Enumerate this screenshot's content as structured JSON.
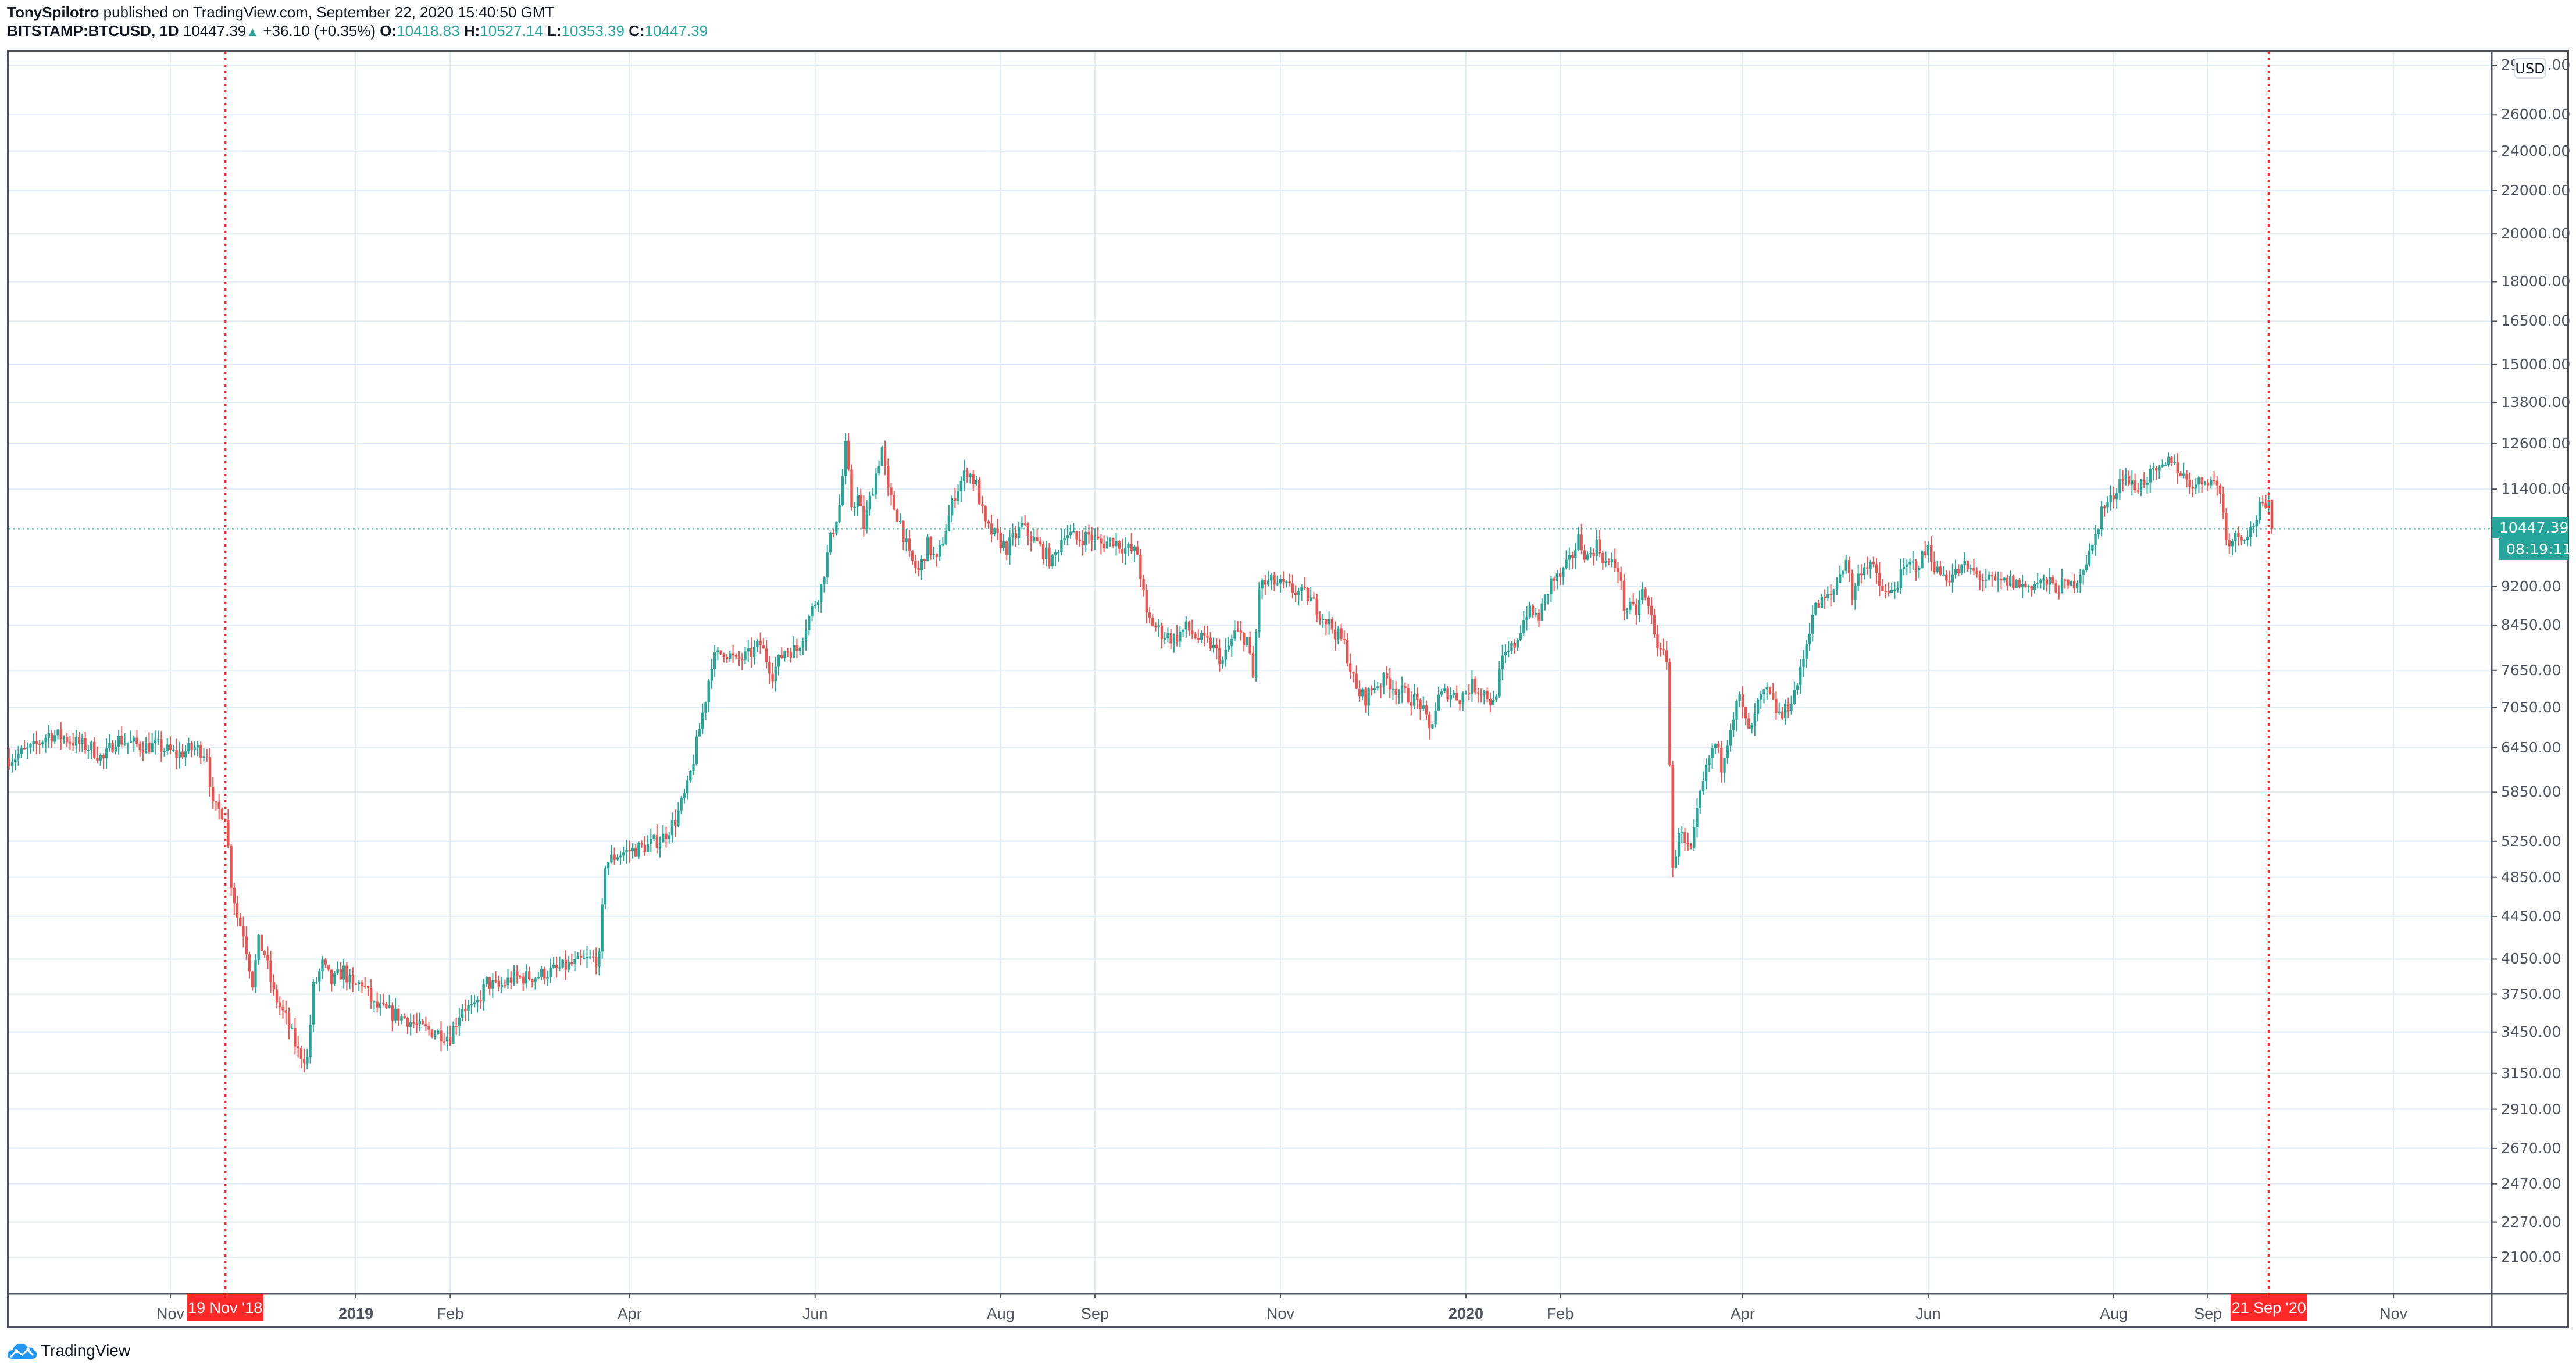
{
  "header": {
    "author": "TonySpilotro",
    "published_text": " published on TradingView.com, September 22, 2020 15:40:50 GMT",
    "symbol": "BITSTAMP:BTCUSD, 1D",
    "last": "10447.39",
    "change": "+36.10 (+0.35%)",
    "o_label": "O:",
    "o": "10418.83",
    "h_label": "H:",
    "h": "10527.14",
    "l_label": "L:",
    "l": "10353.39",
    "c_label": "C:",
    "c": "10447.39"
  },
  "price_axis": {
    "currency_badge": "USD",
    "last_price_badge": "10447.39",
    "countdown_badge": "08:19:11"
  },
  "markers": {
    "start_label": "19 Nov '18",
    "end_label": "21 Sep '20"
  },
  "footer": {
    "logo_text": "TradingView"
  },
  "colors": {
    "up": "#26a69a",
    "down": "#ef5350",
    "grid": "#e1ecf2",
    "marker": "#ff2828",
    "axis": "#50535e",
    "logo": "#2196f3"
  },
  "chart_data": {
    "type": "candlestick",
    "title": "BITSTAMP:BTCUSD, 1D",
    "xlabel": "",
    "ylabel": "USD",
    "y_scale": "log",
    "ylim": [
      2000,
      29000
    ],
    "grid": true,
    "y_ticks": [
      29000,
      26000,
      24000,
      22000,
      20000,
      18000,
      16500,
      15000,
      13800,
      12600,
      11400,
      10447.39,
      9200,
      8450,
      7650,
      7050,
      6450,
      5850,
      5250,
      4850,
      4450,
      4050,
      3750,
      3450,
      3150,
      2910,
      2670,
      2470,
      2270,
      2100
    ],
    "y_tick_labels": [
      "29000.00",
      "26000.00",
      "24000.00",
      "22000.00",
      "20000.00",
      "18000.00",
      "16500.00",
      "15000.00",
      "13800.00",
      "12600.00",
      "11400.00",
      "10447.39",
      "9200.00",
      "8450.00",
      "7650.00",
      "7050.00",
      "6450.00",
      "5850.00",
      "5250.00",
      "4850.00",
      "4450.00",
      "4050.00",
      "3750.00",
      "3450.00",
      "3150.00",
      "2910.00",
      "2670.00",
      "2470.00",
      "2270.00",
      "2100.00"
    ],
    "x_ticks": [
      {
        "label": "Nov",
        "day": 0
      },
      {
        "label": "19 Nov '18",
        "day": 18,
        "highlight": true
      },
      {
        "label": "2019",
        "day": 61,
        "year": true
      },
      {
        "label": "Feb",
        "day": 92
      },
      {
        "label": "Apr",
        "day": 151
      },
      {
        "label": "Jun",
        "day": 212
      },
      {
        "label": "Aug",
        "day": 273
      },
      {
        "label": "Sep",
        "day": 304
      },
      {
        "label": "Nov",
        "day": 365
      },
      {
        "label": "2020",
        "day": 426,
        "year": true
      },
      {
        "label": "Feb",
        "day": 457
      },
      {
        "label": "Apr",
        "day": 517
      },
      {
        "label": "Jun",
        "day": 578
      },
      {
        "label": "Aug",
        "day": 639
      },
      {
        "label": "Sep",
        "day": 670
      },
      {
        "label": "21 Sep '20",
        "day": 690,
        "highlight": true
      },
      {
        "label": "Nov",
        "day": 731
      }
    ],
    "vertical_markers": [
      {
        "label": "19 Nov '18",
        "day": 18
      },
      {
        "label": "21 Sep '20",
        "day": 690
      }
    ],
    "last_price_line": 10447.39,
    "day0": "2018-11-01",
    "close_path": [
      [
        -53,
        6300
      ],
      [
        -45,
        6450
      ],
      [
        -40,
        6650
      ],
      [
        -35,
        6600
      ],
      [
        -30,
        6500
      ],
      [
        -26,
        6450
      ],
      [
        -22,
        6280
      ],
      [
        -18,
        6580
      ],
      [
        -10,
        6480
      ],
      [
        -4,
        6470
      ],
      [
        2,
        6350
      ],
      [
        8,
        6450
      ],
      [
        12,
        6380
      ],
      [
        14,
        5650
      ],
      [
        17,
        5600
      ],
      [
        18,
        5580
      ],
      [
        20,
        4800
      ],
      [
        22,
        4450
      ],
      [
        24,
        4300
      ],
      [
        27,
        3850
      ],
      [
        29,
        4200
      ],
      [
        31,
        4100
      ],
      [
        34,
        3750
      ],
      [
        38,
        3550
      ],
      [
        42,
        3300
      ],
      [
        45,
        3250
      ],
      [
        47,
        3800
      ],
      [
        50,
        4000
      ],
      [
        53,
        3850
      ],
      [
        57,
        3950
      ],
      [
        60,
        3800
      ],
      [
        63,
        3850
      ],
      [
        67,
        3650
      ],
      [
        72,
        3600
      ],
      [
        77,
        3560
      ],
      [
        82,
        3480
      ],
      [
        87,
        3450
      ],
      [
        92,
        3420
      ],
      [
        96,
        3650
      ],
      [
        100,
        3620
      ],
      [
        104,
        3850
      ],
      [
        108,
        3800
      ],
      [
        112,
        3880
      ],
      [
        120,
        3900
      ],
      [
        126,
        3950
      ],
      [
        132,
        4000
      ],
      [
        138,
        4050
      ],
      [
        141,
        4050
      ],
      [
        143,
        5000
      ],
      [
        147,
        5100
      ],
      [
        152,
        5150
      ],
      [
        157,
        5200
      ],
      [
        162,
        5300
      ],
      [
        166,
        5500
      ],
      [
        170,
        5900
      ],
      [
        173,
        6500
      ],
      [
        176,
        7200
      ],
      [
        178,
        7800
      ],
      [
        182,
        8000
      ],
      [
        186,
        7800
      ],
      [
        190,
        7900
      ],
      [
        194,
        8100
      ],
      [
        198,
        7600
      ],
      [
        202,
        8000
      ],
      [
        206,
        8000
      ],
      [
        210,
        8600
      ],
      [
        214,
        9200
      ],
      [
        217,
        10200
      ],
      [
        220,
        11000
      ],
      [
        222,
        12500
      ],
      [
        224,
        11000
      ],
      [
        226,
        11200
      ],
      [
        228,
        10500
      ],
      [
        232,
        11800
      ],
      [
        234,
        12500
      ],
      [
        236,
        11300
      ],
      [
        240,
        10600
      ],
      [
        243,
        9800
      ],
      [
        246,
        9500
      ],
      [
        249,
        10100
      ],
      [
        252,
        9700
      ],
      [
        254,
        10200
      ],
      [
        258,
        11300
      ],
      [
        262,
        11900
      ],
      [
        265,
        11500
      ],
      [
        268,
        10500
      ],
      [
        271,
        10300
      ],
      [
        275,
        10000
      ],
      [
        280,
        10500
      ],
      [
        285,
        10100
      ],
      [
        290,
        9700
      ],
      [
        294,
        10400
      ],
      [
        298,
        10200
      ],
      [
        302,
        10300
      ],
      [
        306,
        10100
      ],
      [
        310,
        10200
      ],
      [
        314,
        10000
      ],
      [
        318,
        9900
      ],
      [
        321,
        8600
      ],
      [
        326,
        8300
      ],
      [
        330,
        8200
      ],
      [
        334,
        8400
      ],
      [
        338,
        8200
      ],
      [
        342,
        8100
      ],
      [
        346,
        7800
      ],
      [
        350,
        8300
      ],
      [
        354,
        8200
      ],
      [
        356,
        7500
      ],
      [
        358,
        9200
      ],
      [
        362,
        9300
      ],
      [
        366,
        9200
      ],
      [
        370,
        9100
      ],
      [
        374,
        9000
      ],
      [
        378,
        8700
      ],
      [
        382,
        8400
      ],
      [
        386,
        8100
      ],
      [
        390,
        7300
      ],
      [
        393,
        7200
      ],
      [
        396,
        7400
      ],
      [
        400,
        7500
      ],
      [
        404,
        7300
      ],
      [
        408,
        7200
      ],
      [
        411,
        7100
      ],
      [
        414,
        6700
      ],
      [
        417,
        7200
      ],
      [
        420,
        7300
      ],
      [
        424,
        7200
      ],
      [
        428,
        7400
      ],
      [
        432,
        7300
      ],
      [
        435,
        7100
      ],
      [
        438,
        7800
      ],
      [
        442,
        8100
      ],
      [
        446,
        8700
      ],
      [
        450,
        8600
      ],
      [
        454,
        9300
      ],
      [
        457,
        9400
      ],
      [
        460,
        9700
      ],
      [
        463,
        10200
      ],
      [
        466,
        9800
      ],
      [
        469,
        10100
      ],
      [
        472,
        9700
      ],
      [
        476,
        9600
      ],
      [
        478,
        8800
      ],
      [
        482,
        8700
      ],
      [
        484,
        9100
      ],
      [
        487,
        8600
      ],
      [
        490,
        7900
      ],
      [
        492,
        7900
      ],
      [
        494,
        4900
      ],
      [
        496,
        5400
      ],
      [
        498,
        5200
      ],
      [
        500,
        5100
      ],
      [
        503,
        5800
      ],
      [
        506,
        6300
      ],
      [
        508,
        6500
      ],
      [
        510,
        6200
      ],
      [
        513,
        6800
      ],
      [
        516,
        7200
      ],
      [
        518,
        6800
      ],
      [
        520,
        6700
      ],
      [
        522,
        7100
      ],
      [
        525,
        7300
      ],
      [
        528,
        7000
      ],
      [
        530,
        6900
      ],
      [
        534,
        7300
      ],
      [
        536,
        7600
      ],
      [
        540,
        8700
      ],
      [
        543,
        8900
      ],
      [
        546,
        9000
      ],
      [
        548,
        9300
      ],
      [
        551,
        9800
      ],
      [
        553,
        9000
      ],
      [
        556,
        9600
      ],
      [
        559,
        9700
      ],
      [
        562,
        9200
      ],
      [
        565,
        9000
      ],
      [
        568,
        9300
      ],
      [
        571,
        9600
      ],
      [
        575,
        9700
      ],
      [
        578,
        10000
      ],
      [
        581,
        9500
      ],
      [
        585,
        9400
      ],
      [
        590,
        9600
      ],
      [
        595,
        9400
      ],
      [
        600,
        9250
      ],
      [
        605,
        9300
      ],
      [
        610,
        9200
      ],
      [
        615,
        9300
      ],
      [
        620,
        9200
      ],
      [
        625,
        9200
      ],
      [
        628,
        9500
      ],
      [
        632,
        10000
      ],
      [
        635,
        10900
      ],
      [
        638,
        11100
      ],
      [
        642,
        11800
      ],
      [
        646,
        11400
      ],
      [
        650,
        11700
      ],
      [
        654,
        11800
      ],
      [
        658,
        12200
      ],
      [
        662,
        11700
      ],
      [
        666,
        11500
      ],
      [
        670,
        11700
      ],
      [
        674,
        11400
      ],
      [
        676,
        10200
      ],
      [
        680,
        10300
      ],
      [
        684,
        10400
      ],
      [
        687,
        10900
      ],
      [
        690,
        10950
      ],
      [
        691,
        10447
      ]
    ]
  }
}
